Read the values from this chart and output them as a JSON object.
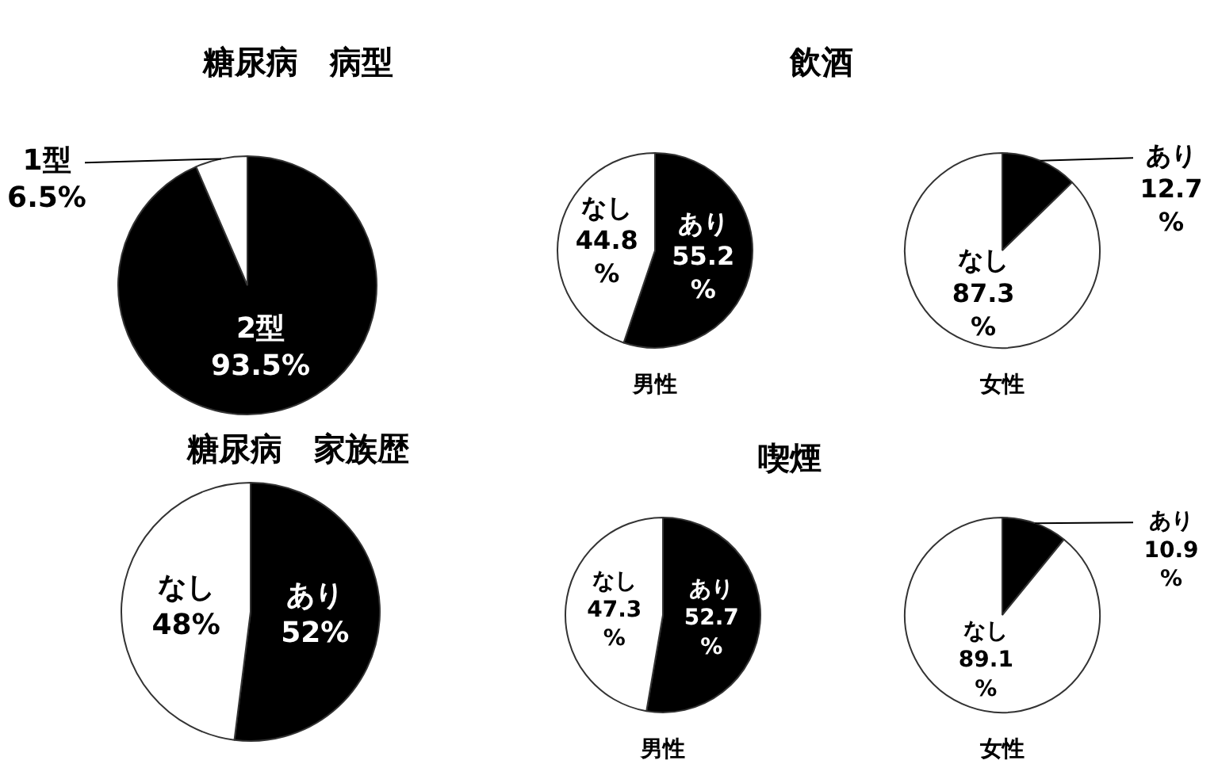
{
  "chart_data": [
    {
      "type": "pie",
      "title": "糖尿病　病型",
      "categories": [
        "2型",
        "1型"
      ],
      "values": [
        93.5,
        6.5
      ],
      "colors": [
        "#000000",
        "#ffffff"
      ],
      "value_labels": [
        "93.5%",
        "6.5%"
      ]
    },
    {
      "type": "pie",
      "title": "飲酒",
      "xlabel": "男性",
      "categories": [
        "あり",
        "なし"
      ],
      "values": [
        55.2,
        44.8
      ],
      "colors": [
        "#000000",
        "#ffffff"
      ],
      "value_labels": [
        "55.2\n%",
        "44.8\n%"
      ]
    },
    {
      "type": "pie",
      "xlabel": "女性",
      "categories": [
        "あり",
        "なし"
      ],
      "values": [
        12.7,
        87.3
      ],
      "colors": [
        "#000000",
        "#ffffff"
      ],
      "value_labels": [
        "12.7\n%",
        "87.3\n%"
      ]
    },
    {
      "type": "pie",
      "title": "糖尿病　家族歴",
      "categories": [
        "あり",
        "なし"
      ],
      "values": [
        52,
        48
      ],
      "colors": [
        "#000000",
        "#ffffff"
      ],
      "value_labels": [
        "52%",
        "48%"
      ]
    },
    {
      "type": "pie",
      "title": "喫煙",
      "xlabel": "男性",
      "categories": [
        "あり",
        "なし"
      ],
      "values": [
        52.7,
        47.3
      ],
      "colors": [
        "#000000",
        "#ffffff"
      ],
      "value_labels": [
        "52.7\n%",
        "47.3\n%"
      ]
    },
    {
      "type": "pie",
      "xlabel": "女性",
      "categories": [
        "あり",
        "なし"
      ],
      "values": [
        10.9,
        89.1
      ],
      "colors": [
        "#000000",
        "#ffffff"
      ],
      "value_labels": [
        "10.9\n%",
        "89.1\n%"
      ]
    }
  ]
}
